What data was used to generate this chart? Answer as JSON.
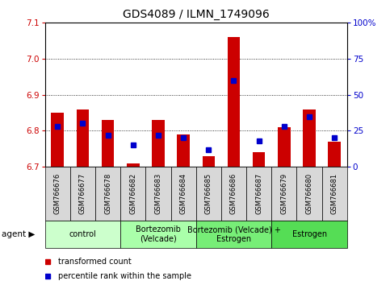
{
  "title": "GDS4089 / ILMN_1749096",
  "samples": [
    "GSM766676",
    "GSM766677",
    "GSM766678",
    "GSM766682",
    "GSM766683",
    "GSM766684",
    "GSM766685",
    "GSM766686",
    "GSM766687",
    "GSM766679",
    "GSM766680",
    "GSM766681"
  ],
  "red_values": [
    6.85,
    6.86,
    6.83,
    6.71,
    6.83,
    6.79,
    6.73,
    7.06,
    6.74,
    6.81,
    6.86,
    6.77
  ],
  "blue_values_pct": [
    28,
    30,
    22,
    15,
    22,
    20,
    12,
    60,
    18,
    28,
    35,
    20
  ],
  "y_min": 6.7,
  "y_max": 7.1,
  "y_ticks": [
    6.7,
    6.8,
    6.9,
    7.0,
    7.1
  ],
  "y2_ticks": [
    0,
    25,
    50,
    75,
    100
  ],
  "y2_labels": [
    "0",
    "25",
    "50",
    "75",
    "100%"
  ],
  "groups": [
    {
      "label": "control",
      "start": 0,
      "end": 3,
      "color": "#ccffcc"
    },
    {
      "label": "Bortezomib\n(Velcade)",
      "start": 3,
      "end": 6,
      "color": "#aaffaa"
    },
    {
      "label": "Bortezomib (Velcade) +\nEstrogen",
      "start": 6,
      "end": 9,
      "color": "#77ee77"
    },
    {
      "label": "Estrogen",
      "start": 9,
      "end": 12,
      "color": "#55dd55"
    }
  ],
  "bar_width": 0.5,
  "blue_marker_size": 4,
  "red_color": "#cc0000",
  "blue_color": "#0000cc",
  "legend_items": [
    "transformed count",
    "percentile rank within the sample"
  ],
  "title_fontsize": 10,
  "tick_fontsize": 7.5,
  "sample_fontsize": 6.0,
  "group_fontsize": 7.0,
  "legend_fontsize": 7.0
}
